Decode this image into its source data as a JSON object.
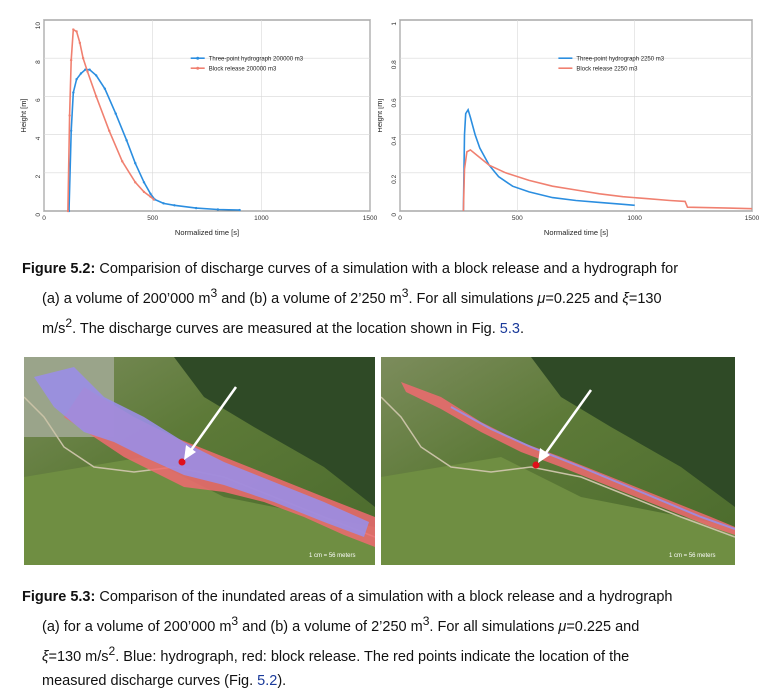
{
  "colors": {
    "blue": "#2b8ee0",
    "red": "#f08070",
    "reference": "#1a3a9a",
    "inundation_blue": "#9a8ee6",
    "inundation_red": "#f06a70"
  },
  "chart_data": [
    {
      "type": "line",
      "xlabel": "Normalized time [s]",
      "ylabel": "Height [m]",
      "xlim": [
        0,
        1500
      ],
      "ylim": [
        0,
        10
      ],
      "xticks": [
        "0",
        "500",
        "1000",
        "1500"
      ],
      "yticks": [
        "0",
        "2",
        "4",
        "6",
        "8",
        "10"
      ],
      "grid": true,
      "legend_position": "top-right",
      "markers": true,
      "series": [
        {
          "name": "Three-point hydrograph 200000 m3",
          "color": "#2b8ee0",
          "x": [
            115,
            125,
            135,
            150,
            170,
            190,
            210,
            240,
            280,
            330,
            380,
            420,
            460,
            490,
            510,
            550,
            600,
            700,
            800,
            900
          ],
          "y": [
            0,
            4.2,
            6.2,
            6.9,
            7.2,
            7.4,
            7.4,
            7.1,
            6.4,
            5.1,
            3.7,
            2.5,
            1.5,
            0.9,
            0.6,
            0.4,
            0.3,
            0.15,
            0.08,
            0.05
          ]
        },
        {
          "name": "Block release 200000 m3",
          "color": "#f08070",
          "x": [
            110,
            118,
            125,
            135,
            150,
            165,
            180,
            200,
            240,
            300,
            360,
            420,
            460,
            490,
            505
          ],
          "y": [
            0,
            5.0,
            7.9,
            9.5,
            9.4,
            8.8,
            8.0,
            7.3,
            6.0,
            4.2,
            2.6,
            1.5,
            1.0,
            0.75,
            0.6
          ]
        }
      ]
    },
    {
      "type": "line",
      "xlabel": "Normalized time [s]",
      "ylabel": "Height [m]",
      "xlim": [
        0,
        1500
      ],
      "ylim": [
        0,
        1
      ],
      "xticks": [
        "0",
        "500",
        "1000",
        "1500"
      ],
      "yticks": [
        "0",
        "0.2",
        "0.4",
        "0.6",
        "0.8",
        "1"
      ],
      "grid": true,
      "legend_position": "top-right",
      "markers": false,
      "series": [
        {
          "name": "Three-point hydrograph 2250 m3",
          "color": "#2b8ee0",
          "x": [
            270,
            275,
            280,
            290,
            300,
            320,
            340,
            380,
            420,
            480,
            550,
            650,
            750,
            850,
            950,
            1000
          ],
          "y": [
            0,
            0.4,
            0.51,
            0.53,
            0.49,
            0.4,
            0.33,
            0.24,
            0.18,
            0.13,
            0.1,
            0.07,
            0.055,
            0.045,
            0.035,
            0.03
          ]
        },
        {
          "name": "Block release 2250 m3",
          "color": "#f08070",
          "x": [
            270,
            275,
            285,
            300,
            330,
            380,
            450,
            550,
            650,
            750,
            850,
            950,
            1050,
            1150,
            1215,
            1225,
            1300,
            1400,
            1500
          ],
          "y": [
            0,
            0.22,
            0.31,
            0.32,
            0.29,
            0.24,
            0.2,
            0.16,
            0.13,
            0.11,
            0.09,
            0.075,
            0.065,
            0.055,
            0.05,
            0.02,
            0.018,
            0.015,
            0.012
          ]
        }
      ]
    }
  ],
  "figure_5_2": {
    "label": "Figure 5.2:",
    "text_1": " Comparision of discharge curves of a simulation with a block release and a hydrograph for",
    "text_2": "(a) a volume of 200’000 m",
    "sup_1": "3",
    "text_3": " and (b) a volume of 2’250 m",
    "sup_2": "3",
    "text_4": ". For all simulations ",
    "mu": "μ",
    "text_5": "=0.225 and ",
    "xi": "ξ",
    "text_6": "=130",
    "text_7": "m/s",
    "sup_3": "2",
    "text_8": ". The discharge curves are measured at the location shown in Fig. ",
    "ref": "5.3",
    "text_9": "."
  },
  "figure_5_3": {
    "label": "Figure 5.3:",
    "text_1": " Comparison of the inundated areas of a simulation with a block release and a hydrograph",
    "text_2": "(a) for a volume of 200’000 m",
    "sup_1": "3",
    "text_3": " and (b) a volume of 2’250 m",
    "sup_2": "3",
    "text_4": ". For all simulations ",
    "mu": "μ",
    "text_5": "=0.225 and",
    "xi": "ξ",
    "text_6": "=130 m/s",
    "sup_3": "2",
    "text_7": ". Blue: hydrograph, red: block release. The red points indicate the location of the",
    "text_8": "measured discharge curves (Fig. ",
    "ref": "5.2",
    "text_9": ")."
  },
  "maps": {
    "left_scale": "1 cm = 56 meters",
    "right_scale": "1 cm = 56 meters"
  }
}
